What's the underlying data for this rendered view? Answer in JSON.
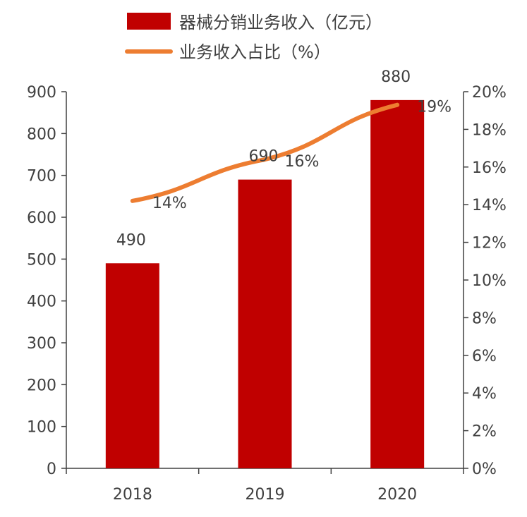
{
  "chart_data": {
    "type": "bar",
    "categories": [
      "2018",
      "2019",
      "2020"
    ],
    "series": [
      {
        "name": "器械分销业务收入（亿元）",
        "type": "bar",
        "axis": "left",
        "values": [
          490,
          690,
          880
        ],
        "labels": [
          "490",
          "690",
          "880"
        ],
        "color": "#C00000"
      },
      {
        "name": "业务收入占比（%）",
        "type": "line",
        "axis": "right",
        "values": [
          14.2,
          16.4,
          19.3
        ],
        "labels": [
          "14%",
          "16%",
          "19%"
        ],
        "color": "#ED7D31"
      }
    ],
    "y_left": {
      "min": 0,
      "max": 900,
      "ticks": [
        0,
        100,
        200,
        300,
        400,
        500,
        600,
        700,
        800,
        900
      ],
      "tick_labels": [
        "0",
        "100",
        "200",
        "300",
        "400",
        "500",
        "600",
        "700",
        "800",
        "900"
      ]
    },
    "y_right": {
      "min": 0,
      "max": 20,
      "ticks": [
        0,
        2,
        4,
        6,
        8,
        10,
        12,
        14,
        16,
        18,
        20
      ],
      "tick_labels": [
        "0%",
        "2%",
        "4%",
        "6%",
        "8%",
        "10%",
        "12%",
        "14%",
        "16%",
        "18%",
        "20%"
      ]
    },
    "grid": false,
    "legend": {
      "position": "top",
      "entries": [
        "器械分销业务收入（亿元）",
        "业务收入占比（%）"
      ]
    }
  }
}
